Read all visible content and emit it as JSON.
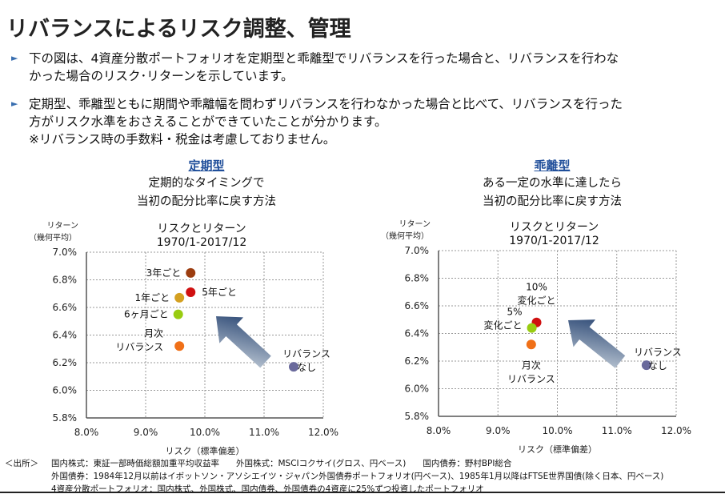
{
  "title": "リバランスによるリスク調整、管理",
  "bullets": [
    {
      "lines": [
        "下の図は、4資産分散ポートフォリオを定期型と乖離型でリバランスを行った場合と、リバランスを行わな",
        "かった場合のリスク･リターンを示しています。"
      ]
    },
    {
      "lines": [
        "定期型、乖離型ともに期間や乖離幅を問わずリバランスを行わなかった場合と比べて、リバランスを行った",
        "方がリスク水準をおさえることができていたことが分かります。",
        "※リバランス時の手数料・税金は考慮しておりません。"
      ]
    }
  ],
  "panels": [
    {
      "heading": "定期型",
      "desc": [
        "定期的なタイミングで",
        "当初の配分比率に戻す方法"
      ]
    },
    {
      "heading": "乖離型",
      "desc": [
        "ある一定の水準に達したら",
        "当初の配分比率に戻す方法"
      ]
    }
  ],
  "source": {
    "label": "＜出所＞",
    "lines": [
      "国内株式：東証一部時価総額加重平均収益率　　外国株式：MSCIコクサイ(グロス、円ベース)　　国内債券：野村BPI総合",
      "外国債券：1984年12月以前はイボットソン・アソシエイツ・ジャパン外国債券ポートフォリオ(円ベース)、1985年1月以降はFTSE世界国債(除く日本、円ベース)",
      "4資産分散ポートフォリオ：国内株式、外国株式、国内債券、外国債券の4資産に25%ずつ投資したポートフォリオ"
    ]
  },
  "chart_data": [
    {
      "type": "scatter",
      "title": [
        "リスクとリターン",
        "1970/1-2017/12"
      ],
      "ylabel": [
        "リターン",
        "（幾何平均）"
      ],
      "xlabel": "リスク（標準偏差）",
      "xlim": [
        8,
        12
      ],
      "ylim": [
        5.8,
        7.0
      ],
      "xticks": [
        "8.0%",
        "9.0%",
        "10.0%",
        "11.0%",
        "12.0%"
      ],
      "yticks": [
        "5.8%",
        "6.0%",
        "6.2%",
        "6.4%",
        "6.6%",
        "6.8%",
        "7.0%"
      ],
      "grid": true,
      "points": [
        {
          "label": [
            "3年ごと"
          ],
          "x": 9.76,
          "y": 6.85,
          "color": "#9c3d10"
        },
        {
          "label": [
            "5年ごと"
          ],
          "x": 9.76,
          "y": 6.71,
          "color": "#d01010"
        },
        {
          "label": [
            "1年ごと"
          ],
          "x": 9.57,
          "y": 6.67,
          "color": "#d4a020"
        },
        {
          "label": [
            "6ヶ月ごと"
          ],
          "x": 9.55,
          "y": 6.55,
          "color": "#99cc11"
        },
        {
          "label": [
            "月次",
            "リバランス"
          ],
          "x": 9.57,
          "y": 6.32,
          "color": "#f07018"
        },
        {
          "label": [
            "リバランス",
            "なし"
          ],
          "x": 11.5,
          "y": 6.17,
          "color": "#6a6a9c"
        }
      ]
    },
    {
      "type": "scatter",
      "title": [
        "リスクとリターン",
        "1970/1-2017/12"
      ],
      "ylabel": [
        "リターン",
        "（幾何平均）"
      ],
      "xlabel": "リスク（標準偏差）",
      "xlim": [
        8,
        12
      ],
      "ylim": [
        5.8,
        7.0
      ],
      "xticks": [
        "8.0%",
        "9.0%",
        "10.0%",
        "11.0%",
        "12.0%"
      ],
      "yticks": [
        "5.8%",
        "6.0%",
        "6.2%",
        "6.4%",
        "6.6%",
        "6.8%",
        "7.0%"
      ],
      "grid": true,
      "points": [
        {
          "label": [
            "10%",
            "変化ごと"
          ],
          "x": 9.65,
          "y": 6.48,
          "color": "#d01010"
        },
        {
          "label": [
            "5%",
            "変化ごと"
          ],
          "x": 9.57,
          "y": 6.44,
          "color": "#99cc11"
        },
        {
          "label": [
            "月次",
            "リバランス"
          ],
          "x": 9.56,
          "y": 6.32,
          "color": "#f07018"
        },
        {
          "label": [
            "リバランス",
            "なし"
          ],
          "x": 11.5,
          "y": 6.17,
          "color": "#6a6a9c"
        }
      ]
    }
  ]
}
